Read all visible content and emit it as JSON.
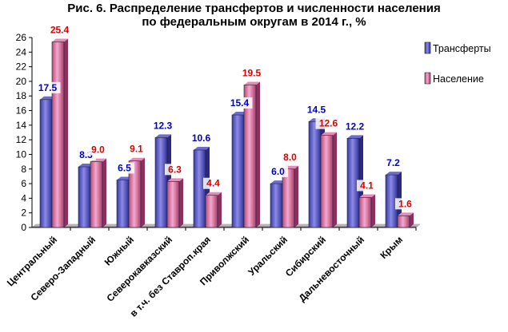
{
  "chart_data": {
    "type": "bar",
    "title": "Рис. 6. Распределение трансфертов и численности населения",
    "subtitle": "по федеральным округам в 2014 г., %",
    "categories": [
      "Центральный",
      "Северо-Западный",
      "Южный",
      "Северокавказский",
      "в т.ч. без Ставроп.края",
      "Приволжский",
      "Уральский",
      "Сибирский",
      "Дальневосточный",
      "Крым"
    ],
    "series": [
      {
        "name": "Трансферты",
        "values": [
          17.5,
          8.3,
          6.5,
          12.3,
          10.6,
          15.4,
          6.0,
          14.5,
          12.2,
          7.2
        ],
        "color": "#4a4ab8",
        "label_color": "#0000cc"
      },
      {
        "name": "Население",
        "values": [
          25.4,
          9.0,
          9.1,
          6.3,
          4.4,
          19.5,
          8.0,
          12.6,
          4.1,
          1.6
        ],
        "color": "#d86a98",
        "label_color": "#dd0000"
      }
    ],
    "ylim": [
      0,
      26
    ],
    "yticks": [
      "0",
      "2",
      "4",
      "6",
      "8",
      "10",
      "12",
      "14",
      "16",
      "18",
      "20",
      "22",
      "24",
      "26"
    ],
    "grid": false,
    "legend": "right"
  }
}
